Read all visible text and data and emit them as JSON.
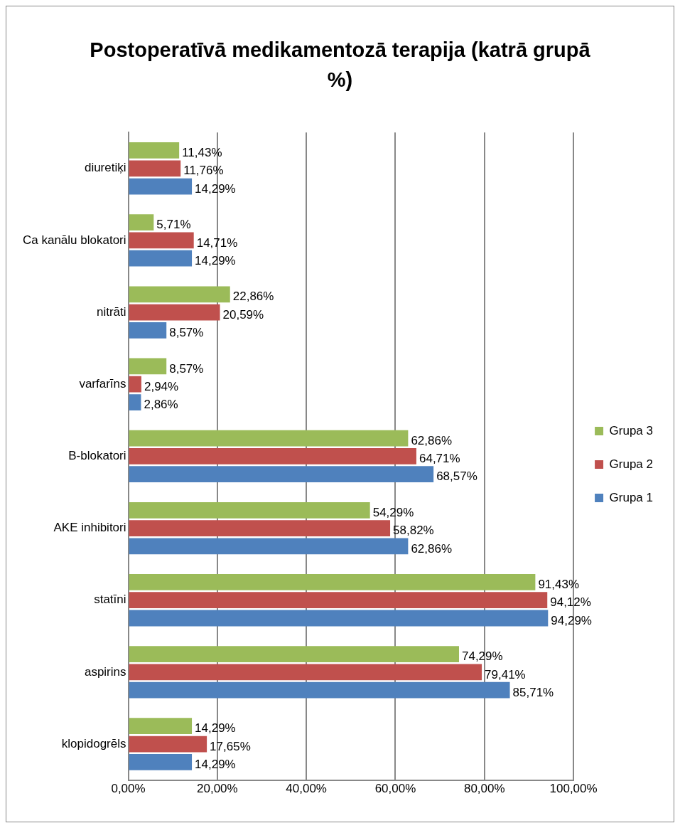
{
  "chart_data": {
    "type": "bar",
    "orientation": "horizontal",
    "title": "Postoperatīvā medikamentozā terapija (katrā grupā %)",
    "categories": [
      "diuretiķi",
      "Ca kanālu blokatori",
      "nitrāti",
      "varfarīns",
      "B-blokatori",
      "AKE inhibitori",
      "statīni",
      "aspirins",
      "klopidogrēls"
    ],
    "series": [
      {
        "name": "Grupa 3",
        "color": "#9bbb59",
        "values": [
          11.43,
          5.71,
          22.86,
          8.57,
          62.86,
          54.29,
          91.43,
          74.29,
          14.29
        ],
        "value_labels": [
          "11,43%",
          "5,71%",
          "22,86%",
          "8,57%",
          "62,86%",
          "54,29%",
          "91,43%",
          "74,29%",
          "14,29%"
        ]
      },
      {
        "name": "Grupa 2",
        "color": "#c0504d",
        "values": [
          11.76,
          14.71,
          20.59,
          2.94,
          64.71,
          58.82,
          94.12,
          79.41,
          17.65
        ],
        "value_labels": [
          "11,76%",
          "14,71%",
          "20,59%",
          "2,94%",
          "64,71%",
          "58,82%",
          "94,12%",
          "79,41%",
          "17,65%"
        ]
      },
      {
        "name": "Grupa 1",
        "color": "#4f81bd",
        "values": [
          14.29,
          14.29,
          8.57,
          2.86,
          68.57,
          62.86,
          94.29,
          85.71,
          14.29
        ],
        "value_labels": [
          "14,29%",
          "14,29%",
          "8,57%",
          "2,86%",
          "68,57%",
          "62,86%",
          "94,29%",
          "85,71%",
          "14,29%"
        ]
      }
    ],
    "xlim": [
      0,
      100
    ],
    "xticks": [
      {
        "value": 0,
        "label": "0,00%"
      },
      {
        "value": 20,
        "label": "20,00%"
      },
      {
        "value": 40,
        "label": "40,00%"
      },
      {
        "value": 60,
        "label": "60,00%"
      },
      {
        "value": 80,
        "label": "80,00%"
      },
      {
        "value": 100,
        "label": "100,00%"
      }
    ],
    "grid": "x",
    "legend": "right"
  }
}
